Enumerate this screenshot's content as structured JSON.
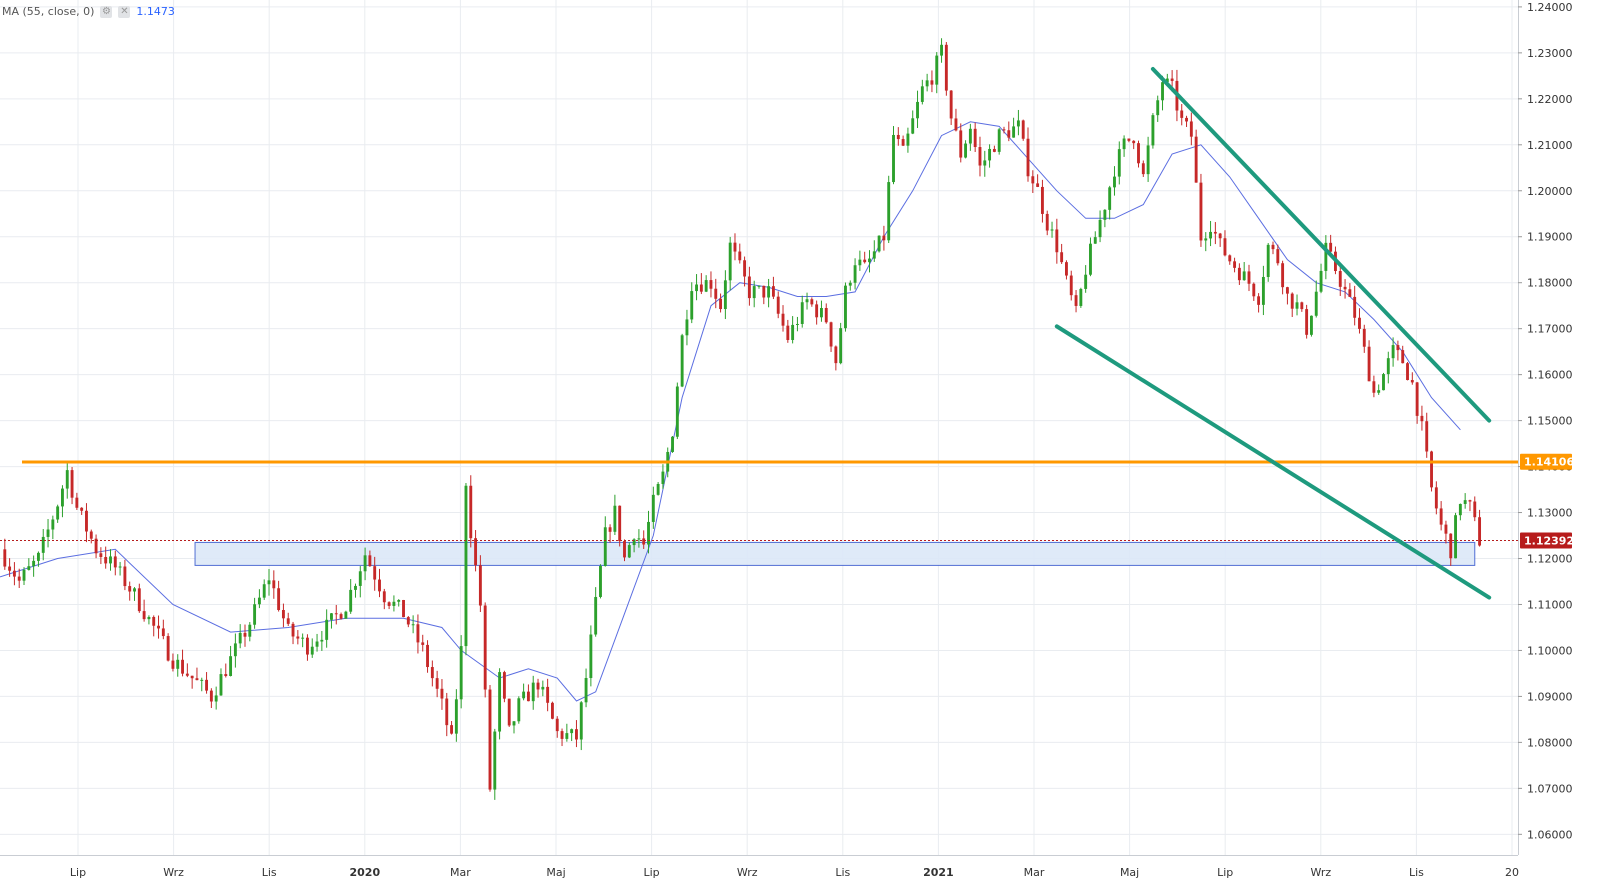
{
  "indicator": {
    "label": "MA (55, close, 0)",
    "value": "1.1473",
    "settings_icon": "gear-icon",
    "close_icon": "close-icon"
  },
  "colors": {
    "up": "#2ca02c",
    "down": "#c62828",
    "ma": "#5b6ee1",
    "resistance": "#ff9800",
    "channel": "#1e9a7e",
    "zone_fill": "#dce8f8",
    "zone_border": "#3f5fd0",
    "last_price": "#b71c1c",
    "grid": "#e9ecf0"
  },
  "chart_data": {
    "type": "candlestick",
    "y_axis": {
      "ticks": [
        "1.24000",
        "1.23000",
        "1.22000",
        "1.21000",
        "1.20000",
        "1.19000",
        "1.18000",
        "1.17000",
        "1.16000",
        "1.15000",
        "1.14000",
        "1.13000",
        "1.12000",
        "1.11000",
        "1.10000",
        "1.09000",
        "1.08000",
        "1.07000",
        "1.06000"
      ],
      "range": [
        1.0555,
        1.2415
      ],
      "side": "right"
    },
    "x_axis": {
      "labels": [
        "Lip",
        "Wrz",
        "Lis",
        "2020",
        "Mar",
        "Maj",
        "Lip",
        "Wrz",
        "Lis",
        "2021",
        "Mar",
        "Maj",
        "Lip",
        "Wrz",
        "Lis",
        "20"
      ],
      "bold_labels": [
        "2020",
        "2021"
      ]
    },
    "price_path": [
      [
        0,
        1.122
      ],
      [
        2,
        1.115
      ],
      [
        4,
        1.12
      ],
      [
        6,
        1.132
      ],
      [
        7,
        1.139
      ],
      [
        8,
        1.131
      ],
      [
        10,
        1.122
      ],
      [
        12,
        1.118
      ],
      [
        14,
        1.112
      ],
      [
        16,
        1.105
      ],
      [
        18,
        1.098
      ],
      [
        20,
        1.094
      ],
      [
        22,
        1.09
      ],
      [
        24,
        1.098
      ],
      [
        26,
        1.106
      ],
      [
        28,
        1.116
      ],
      [
        30,
        1.104
      ],
      [
        32,
        1.101
      ],
      [
        34,
        1.105
      ],
      [
        36,
        1.11
      ],
      [
        38,
        1.121
      ],
      [
        40,
        1.112
      ],
      [
        42,
        1.108
      ],
      [
        44,
        1.1
      ],
      [
        46,
        1.088
      ],
      [
        47,
        1.08
      ],
      [
        48,
        1.1
      ],
      [
        48.5,
        1.137
      ],
      [
        49,
        1.126
      ],
      [
        50,
        1.11
      ],
      [
        51,
        1.07
      ],
      [
        52,
        1.094
      ],
      [
        53,
        1.082
      ],
      [
        54,
        1.088
      ],
      [
        56,
        1.093
      ],
      [
        58,
        1.082
      ],
      [
        60,
        1.081
      ],
      [
        61,
        1.094
      ],
      [
        62,
        1.11
      ],
      [
        63,
        1.125
      ],
      [
        64,
        1.13
      ],
      [
        65,
        1.12
      ],
      [
        66,
        1.126
      ],
      [
        67,
        1.123
      ],
      [
        68,
        1.132
      ],
      [
        69,
        1.138
      ],
      [
        70,
        1.148
      ],
      [
        71,
        1.168
      ],
      [
        72,
        1.18
      ],
      [
        74,
        1.18
      ],
      [
        75,
        1.175
      ],
      [
        76,
        1.188
      ],
      [
        77,
        1.183
      ],
      [
        78,
        1.178
      ],
      [
        80,
        1.178
      ],
      [
        82,
        1.168
      ],
      [
        84,
        1.176
      ],
      [
        86,
        1.172
      ],
      [
        87,
        1.163
      ],
      [
        88,
        1.178
      ],
      [
        89,
        1.185
      ],
      [
        90,
        1.183
      ],
      [
        92,
        1.19
      ],
      [
        93,
        1.212
      ],
      [
        94,
        1.208
      ],
      [
        96,
        1.222
      ],
      [
        97,
        1.225
      ],
      [
        98,
        1.23
      ],
      [
        99,
        1.216
      ],
      [
        100,
        1.208
      ],
      [
        101,
        1.214
      ],
      [
        102,
        1.205
      ],
      [
        104,
        1.212
      ],
      [
        106,
        1.214
      ],
      [
        107,
        1.205
      ],
      [
        108,
        1.2
      ],
      [
        109,
        1.193
      ],
      [
        110,
        1.188
      ],
      [
        111,
        1.18
      ],
      [
        112,
        1.173
      ],
      [
        113,
        1.183
      ],
      [
        114,
        1.19
      ],
      [
        115,
        1.197
      ],
      [
        116,
        1.205
      ],
      [
        117,
        1.21
      ],
      [
        118,
        1.212
      ],
      [
        119,
        1.203
      ],
      [
        120,
        1.215
      ],
      [
        121,
        1.224
      ],
      [
        122,
        1.222
      ],
      [
        123,
        1.215
      ],
      [
        124,
        1.212
      ],
      [
        125,
        1.19
      ],
      [
        126,
        1.193
      ],
      [
        127,
        1.188
      ],
      [
        128,
        1.185
      ],
      [
        130,
        1.18
      ],
      [
        131,
        1.177
      ],
      [
        132,
        1.188
      ],
      [
        133,
        1.185
      ],
      [
        134,
        1.177
      ],
      [
        135,
        1.175
      ],
      [
        136,
        1.17
      ],
      [
        137,
        1.178
      ],
      [
        138,
        1.187
      ],
      [
        139,
        1.183
      ],
      [
        140,
        1.178
      ],
      [
        141,
        1.173
      ],
      [
        142,
        1.165
      ],
      [
        143,
        1.156
      ],
      [
        144,
        1.16
      ],
      [
        145,
        1.165
      ],
      [
        146,
        1.163
      ],
      [
        147,
        1.158
      ],
      [
        148,
        1.148
      ],
      [
        149,
        1.135
      ],
      [
        150,
        1.127
      ],
      [
        151,
        1.122
      ],
      [
        152,
        1.133
      ],
      [
        153,
        1.131
      ],
      [
        154,
        1.124
      ]
    ],
    "ma_path": [
      [
        0,
        1.116
      ],
      [
        6,
        1.12
      ],
      [
        12,
        1.122
      ],
      [
        18,
        1.11
      ],
      [
        24,
        1.104
      ],
      [
        30,
        1.105
      ],
      [
        36,
        1.107
      ],
      [
        42,
        1.107
      ],
      [
        46,
        1.105
      ],
      [
        48,
        1.1
      ],
      [
        52,
        1.094
      ],
      [
        55,
        1.096
      ],
      [
        58,
        1.094
      ],
      [
        60,
        1.089
      ],
      [
        62,
        1.091
      ],
      [
        65,
        1.108
      ],
      [
        68,
        1.125
      ],
      [
        71,
        1.155
      ],
      [
        74,
        1.175
      ],
      [
        77,
        1.18
      ],
      [
        80,
        1.179
      ],
      [
        83,
        1.177
      ],
      [
        86,
        1.177
      ],
      [
        89,
        1.178
      ],
      [
        92,
        1.19
      ],
      [
        95,
        1.2
      ],
      [
        98,
        1.212
      ],
      [
        101,
        1.215
      ],
      [
        104,
        1.214
      ],
      [
        107,
        1.207
      ],
      [
        110,
        1.2
      ],
      [
        113,
        1.194
      ],
      [
        116,
        1.194
      ],
      [
        119,
        1.197
      ],
      [
        122,
        1.208
      ],
      [
        125,
        1.21
      ],
      [
        128,
        1.203
      ],
      [
        131,
        1.194
      ],
      [
        134,
        1.185
      ],
      [
        137,
        1.18
      ],
      [
        140,
        1.178
      ],
      [
        143,
        1.172
      ],
      [
        146,
        1.165
      ],
      [
        149,
        1.155
      ],
      [
        152,
        1.148
      ]
    ],
    "last_price": "1.12392",
    "resistance_level": "1.14106",
    "resistance_value": 1.141,
    "support_zone": {
      "x_start": 20.3,
      "x_end": 153.5,
      "top": 1.1235,
      "bottom": 1.1185
    },
    "channel_upper": [
      [
        120,
        1.2265
      ],
      [
        155,
        1.15
      ]
    ],
    "channel_lower": [
      [
        110,
        1.1705
      ],
      [
        155,
        1.1115
      ]
    ]
  }
}
